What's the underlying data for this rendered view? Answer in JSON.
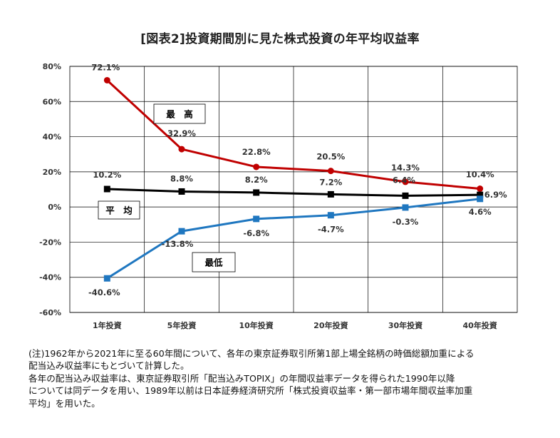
{
  "chart_data": {
    "type": "line",
    "title": "[図表2]投資期間別に見た株式投資の年平均収益率",
    "categories": [
      "1年投資",
      "5年投資",
      "10年投資",
      "20年投資",
      "30年投資",
      "40年投資"
    ],
    "ylim": [
      -60,
      80
    ],
    "yticks": [
      "80%",
      "60%",
      "40%",
      "20%",
      "0%",
      "-20%",
      "-40%",
      "-60%"
    ],
    "ytick_values": [
      80,
      60,
      40,
      20,
      0,
      -20,
      -40,
      -60
    ],
    "grid": true,
    "series": [
      {
        "name": "最　高",
        "color": "#c00000",
        "marker": "circle",
        "values": [
          72.1,
          32.9,
          22.8,
          20.5,
          14.3,
          10.4
        ],
        "labels": [
          "72.1%",
          "32.9%",
          "22.8%",
          "20.5%",
          "14.3%",
          "10.4%"
        ]
      },
      {
        "name": "平　均",
        "color": "#000000",
        "marker": "square",
        "values": [
          10.2,
          8.8,
          8.2,
          7.2,
          6.4,
          6.9
        ],
        "labels": [
          "10.2%",
          "8.8%",
          "8.2%",
          "7.2%",
          "6.4%",
          "6.9%"
        ]
      },
      {
        "name": "最低",
        "color": "#1f77c0",
        "marker": "square",
        "values": [
          -40.6,
          -13.8,
          -6.8,
          -4.7,
          -0.3,
          4.6
        ],
        "labels": [
          "-40.6%",
          "-13.8%",
          "-6.8%",
          "-4.7%",
          "-0.3%",
          "4.6%"
        ]
      }
    ]
  },
  "notes": [
    "(注)1962年から2021年に至る60年間について、各年の東京証券取引所第1部上場全銘柄の時価総額加重による",
    "配当込み収益率にもとづいて計算した。",
    "各年の配当込み収益率は、東京証券取引所「配当込みTOPIX」の年間収益率データを得られた1990年以降",
    "については同データを用い、1989年以前は日本証券経済研究所「株式投資収益率・第一部市場年間収益率加重",
    "平均」を用いた。"
  ]
}
